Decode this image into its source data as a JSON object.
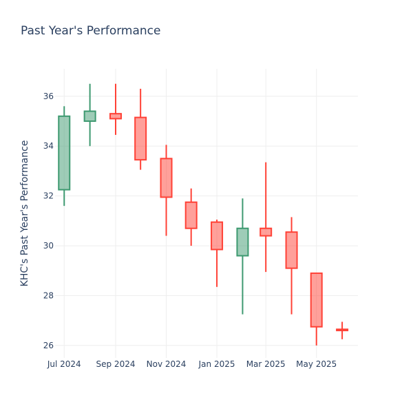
{
  "chart_data": {
    "type": "candlestick",
    "title": "Past Year's Performance",
    "xlabel": "",
    "ylabel": "KHC's Past Year's Performance",
    "ylim": [
      25.5,
      37.1
    ],
    "yticks": [
      26,
      28,
      30,
      32,
      34,
      36
    ],
    "xticks": [
      {
        "label": "Jul 2024",
        "date": "2024-07-01"
      },
      {
        "label": "Sep 2024",
        "date": "2024-09-01"
      },
      {
        "label": "Nov 2024",
        "date": "2024-11-01"
      },
      {
        "label": "Jan 2025",
        "date": "2025-01-01"
      },
      {
        "label": "Mar 2025",
        "date": "2025-03-01"
      },
      {
        "label": "May 2025",
        "date": "2025-05-01"
      }
    ],
    "grid": true,
    "increasing_color": "#3d9970",
    "decreasing_color": "#ff4136",
    "series": [
      {
        "date": "2024-07-01",
        "open": 32.25,
        "high": 35.6,
        "low": 31.6,
        "close": 35.2
      },
      {
        "date": "2024-08-01",
        "open": 35.0,
        "high": 36.5,
        "low": 34.0,
        "close": 35.4
      },
      {
        "date": "2024-09-01",
        "open": 35.3,
        "high": 36.5,
        "low": 34.45,
        "close": 35.1
      },
      {
        "date": "2024-10-01",
        "open": 35.15,
        "high": 36.3,
        "low": 33.05,
        "close": 33.45
      },
      {
        "date": "2024-11-01",
        "open": 33.5,
        "high": 34.05,
        "low": 30.4,
        "close": 31.95
      },
      {
        "date": "2024-12-01",
        "open": 31.75,
        "high": 32.3,
        "low": 30.0,
        "close": 30.7
      },
      {
        "date": "2025-01-01",
        "open": 30.95,
        "high": 31.05,
        "low": 28.35,
        "close": 29.85
      },
      {
        "date": "2025-02-01",
        "open": 29.6,
        "high": 31.9,
        "low": 27.25,
        "close": 30.7
      },
      {
        "date": "2025-03-01",
        "open": 30.7,
        "high": 33.35,
        "low": 28.95,
        "close": 30.4
      },
      {
        "date": "2025-04-01",
        "open": 30.55,
        "high": 31.15,
        "low": 27.25,
        "close": 29.1
      },
      {
        "date": "2025-05-01",
        "open": 28.9,
        "high": 28.9,
        "low": 26.0,
        "close": 26.75
      },
      {
        "date": "2025-06-01",
        "open": 26.65,
        "high": 26.95,
        "low": 26.25,
        "close": 26.6
      }
    ]
  }
}
